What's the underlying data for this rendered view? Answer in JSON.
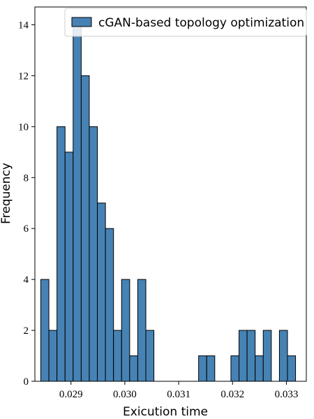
{
  "chart_data": {
    "type": "bar",
    "xlabel": "Exicution time",
    "ylabel": "Frequency",
    "legend": {
      "label": "cGAN-based topology optimization",
      "position": "top-right"
    },
    "bar_color": "#4682b4",
    "edge_color": "#000000",
    "xlim": [
      0.02833,
      0.03337
    ],
    "ylim": [
      0,
      14.7
    ],
    "xticks": [
      "0.029",
      "0.030",
      "0.031",
      "0.032",
      "0.033"
    ],
    "xtick_values": [
      0.029,
      0.03,
      0.031,
      0.032,
      0.033
    ],
    "yticks": [
      "0",
      "2",
      "4",
      "6",
      "8",
      "10",
      "12",
      "14"
    ],
    "ytick_values": [
      0,
      2,
      4,
      6,
      8,
      10,
      12,
      14
    ],
    "bins": [
      {
        "x0": 0.02844,
        "x1": 0.02859,
        "count": 4
      },
      {
        "x0": 0.02859,
        "x1": 0.02874,
        "count": 2
      },
      {
        "x0": 0.02874,
        "x1": 0.02889,
        "count": 10
      },
      {
        "x0": 0.02889,
        "x1": 0.02904,
        "count": 9
      },
      {
        "x0": 0.02904,
        "x1": 0.02919,
        "count": 14
      },
      {
        "x0": 0.02919,
        "x1": 0.02934,
        "count": 12
      },
      {
        "x0": 0.02934,
        "x1": 0.02949,
        "count": 10
      },
      {
        "x0": 0.02949,
        "x1": 0.02964,
        "count": 7
      },
      {
        "x0": 0.02964,
        "x1": 0.02979,
        "count": 6
      },
      {
        "x0": 0.02979,
        "x1": 0.02994,
        "count": 2
      },
      {
        "x0": 0.02994,
        "x1": 0.03009,
        "count": 4
      },
      {
        "x0": 0.03009,
        "x1": 0.03024,
        "count": 1
      },
      {
        "x0": 0.03024,
        "x1": 0.03039,
        "count": 4
      },
      {
        "x0": 0.03039,
        "x1": 0.03054,
        "count": 2
      },
      {
        "x0": 0.03137,
        "x1": 0.03152,
        "count": 1
      },
      {
        "x0": 0.03152,
        "x1": 0.03167,
        "count": 1
      },
      {
        "x0": 0.03197,
        "x1": 0.03212,
        "count": 1
      },
      {
        "x0": 0.03212,
        "x1": 0.03227,
        "count": 2
      },
      {
        "x0": 0.03227,
        "x1": 0.03242,
        "count": 2
      },
      {
        "x0": 0.03242,
        "x1": 0.03257,
        "count": 1
      },
      {
        "x0": 0.03257,
        "x1": 0.03272,
        "count": 2
      },
      {
        "x0": 0.03287,
        "x1": 0.03302,
        "count": 2
      },
      {
        "x0": 0.03302,
        "x1": 0.03317,
        "count": 1
      }
    ]
  }
}
